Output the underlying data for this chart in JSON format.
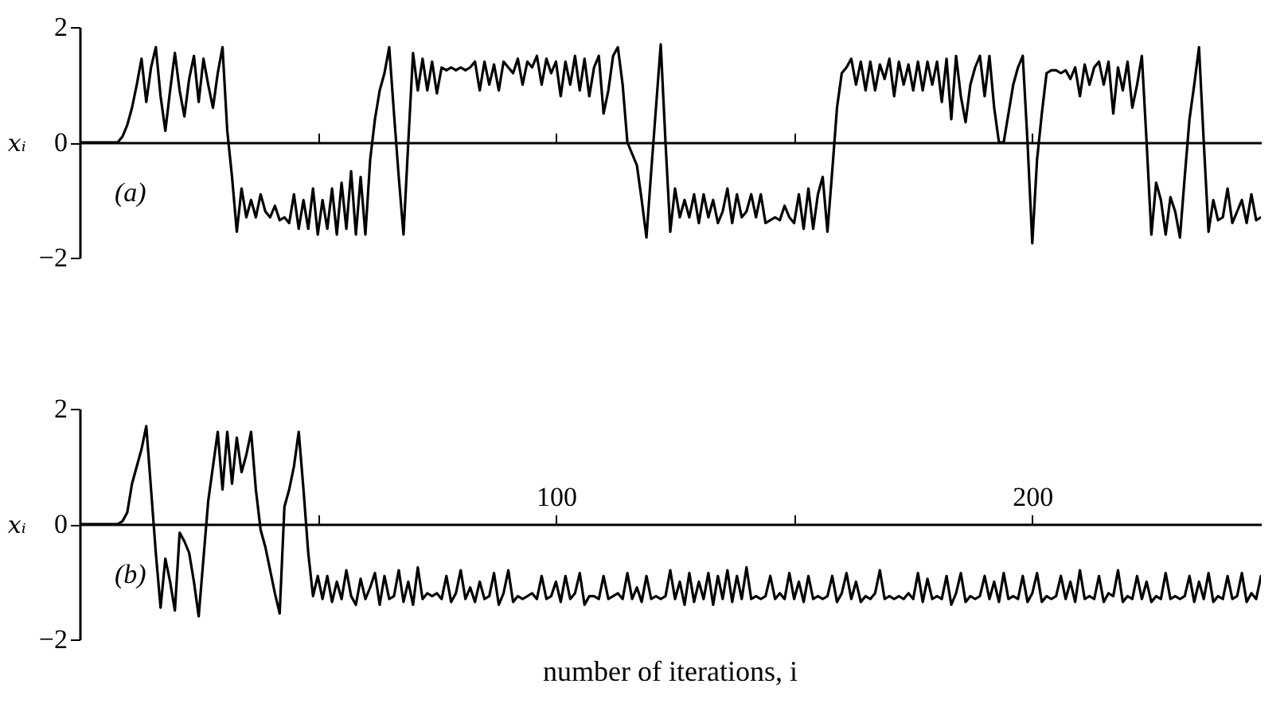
{
  "chart_data": [
    {
      "type": "line",
      "ylabel": "xᵢ",
      "annotations": [
        "(a)"
      ],
      "xlim": [
        0,
        248
      ],
      "ylim": [
        -2,
        2
      ],
      "yticks": [
        -2,
        0,
        2
      ],
      "xticks": [
        {
          "value": 50,
          "label": null
        },
        {
          "value": 100,
          "label": null
        },
        {
          "value": 150,
          "label": null
        },
        {
          "value": 200,
          "label": null
        }
      ],
      "tick_labels": "y",
      "line_style": "solid",
      "x": [
        0,
        1,
        2,
        3,
        4,
        5,
        6,
        7,
        8,
        9,
        10,
        11,
        12,
        13,
        14,
        15,
        16,
        17,
        18,
        19,
        20,
        21,
        22,
        23,
        24,
        25,
        26,
        27,
        28,
        29,
        30,
        31,
        32,
        33,
        34,
        35,
        36,
        37,
        38,
        39,
        40,
        41,
        42,
        43,
        44,
        45,
        46,
        47,
        48,
        49,
        50,
        51,
        52,
        53,
        54,
        55,
        56,
        57,
        58,
        59,
        60,
        61,
        62,
        63,
        64,
        65,
        66,
        67,
        68,
        69,
        70,
        71,
        72,
        73,
        74,
        75,
        76,
        77,
        78,
        79,
        80,
        81,
        82,
        83,
        84,
        85,
        86,
        87,
        88,
        89,
        90,
        91,
        92,
        93,
        94,
        95,
        96,
        97,
        98,
        99,
        100,
        101,
        102,
        103,
        104,
        105,
        106,
        107,
        108,
        109,
        110,
        111,
        112,
        113,
        114,
        115,
        116,
        117,
        118,
        119,
        120,
        121,
        122,
        123,
        124,
        125,
        126,
        127,
        128,
        129,
        130,
        131,
        132,
        133,
        134,
        135,
        136,
        137,
        138,
        139,
        140,
        141,
        142,
        143,
        144,
        145,
        146,
        147,
        148,
        149,
        150,
        151,
        152,
        153,
        154,
        155,
        156,
        157,
        158,
        159,
        160,
        161,
        162,
        163,
        164,
        165,
        166,
        167,
        168,
        169,
        170,
        171,
        172,
        173,
        174,
        175,
        176,
        177,
        178,
        179,
        180,
        181,
        182,
        183,
        184,
        185,
        186,
        187,
        188,
        189,
        190,
        191,
        192,
        193,
        194,
        195,
        196,
        197,
        198,
        199,
        200,
        201,
        202,
        203,
        204,
        205,
        206,
        207,
        208,
        209,
        210,
        211,
        212,
        213,
        214,
        215,
        216,
        217,
        218,
        219,
        220,
        221,
        222,
        223,
        224,
        225,
        226,
        227,
        228,
        229,
        230,
        231,
        232,
        233,
        234,
        235,
        236,
        237,
        238,
        239,
        240,
        241,
        242,
        243,
        244,
        245,
        246,
        247,
        248
      ],
      "series": [
        {
          "color": "#000000",
          "values": [
            0,
            0,
            0,
            0,
            0,
            0,
            0,
            0,
            0,
            0.1,
            0.3,
            0.6,
            1.0,
            1.45,
            0.7,
            1.3,
            1.65,
            0.8,
            0.2,
            0.9,
            1.55,
            0.9,
            0.45,
            1.1,
            1.5,
            0.7,
            1.45,
            1.0,
            0.6,
            1.2,
            1.65,
            0.2,
            -0.6,
            -1.55,
            -0.8,
            -1.3,
            -1.0,
            -1.3,
            -0.9,
            -1.2,
            -1.3,
            -1.1,
            -1.35,
            -1.3,
            -1.4,
            -0.9,
            -1.5,
            -1.0,
            -1.5,
            -0.8,
            -1.6,
            -1.0,
            -1.5,
            -0.8,
            -1.6,
            -0.7,
            -1.5,
            -0.5,
            -1.6,
            -0.6,
            -1.6,
            -0.3,
            0.4,
            0.9,
            1.2,
            1.65,
            0.5,
            -0.6,
            -1.6,
            0.0,
            1.55,
            0.9,
            1.45,
            0.9,
            1.4,
            0.85,
            1.3,
            1.25,
            1.3,
            1.25,
            1.3,
            1.25,
            1.3,
            1.4,
            0.9,
            1.4,
            1.0,
            1.35,
            0.9,
            1.4,
            1.3,
            1.2,
            1.45,
            1.0,
            1.4,
            1.3,
            1.5,
            1.0,
            1.45,
            1.2,
            1.4,
            0.8,
            1.4,
            1.0,
            1.5,
            0.9,
            1.45,
            0.8,
            1.3,
            1.5,
            0.5,
            0.9,
            1.5,
            1.65,
            1.0,
            0.0,
            -0.2,
            -0.4,
            -1.0,
            -1.65,
            -0.5,
            0.6,
            1.7,
            0.0,
            -1.55,
            -0.8,
            -1.3,
            -1.0,
            -1.3,
            -0.9,
            -1.4,
            -0.9,
            -1.3,
            -1.0,
            -1.4,
            -1.2,
            -0.8,
            -1.4,
            -0.9,
            -1.3,
            -1.2,
            -0.9,
            -1.3,
            -0.9,
            -1.4,
            -1.35,
            -1.3,
            -1.35,
            -1.1,
            -1.3,
            -1.4,
            -0.9,
            -1.5,
            -0.8,
            -1.5,
            -0.9,
            -0.6,
            -1.55,
            -0.5,
            0.6,
            1.2,
            1.3,
            1.45,
            1.0,
            1.4,
            0.9,
            1.4,
            0.9,
            1.35,
            1.1,
            1.45,
            0.8,
            1.4,
            1.0,
            1.35,
            0.9,
            1.4,
            0.9,
            1.4,
            1.0,
            1.4,
            0.7,
            1.45,
            0.4,
            1.5,
            0.8,
            0.35,
            1.0,
            1.3,
            1.5,
            0.8,
            1.5,
            0.6,
            0.0,
            0.0,
            0.5,
            1.0,
            1.3,
            1.5,
            0.0,
            -1.75,
            -0.3,
            0.5,
            1.2,
            1.25,
            1.25,
            1.2,
            1.25,
            1.1,
            1.3,
            0.8,
            1.35,
            1.0,
            1.3,
            1.4,
            1.0,
            1.4,
            0.5,
            1.3,
            0.9,
            1.4,
            0.6,
            1.0,
            1.5,
            0.0,
            -1.6,
            -0.7,
            -1.0,
            -1.6,
            -0.95,
            -1.2,
            -1.65,
            -0.6,
            0.4,
            1.0,
            1.65,
            0.0,
            -1.55,
            -1.0,
            -1.35,
            -1.3,
            -0.8,
            -1.4,
            -1.2,
            -1.0,
            -1.4,
            -0.9,
            -1.35,
            -1.3
          ]
        }
      ]
    },
    {
      "type": "line",
      "ylabel": "xᵢ",
      "xlabel": "number of iterations, i",
      "annotations": [
        "(b)"
      ],
      "xlim": [
        0,
        248
      ],
      "ylim": [
        -2,
        2
      ],
      "yticks": [
        -2,
        0,
        2
      ],
      "xticks": [
        {
          "value": 50,
          "label": null
        },
        100,
        {
          "value": 150,
          "label": null
        },
        200
      ],
      "line_style": "solid",
      "x": [
        0,
        1,
        2,
        3,
        4,
        5,
        6,
        7,
        8,
        9,
        10,
        11,
        12,
        13,
        14,
        15,
        16,
        17,
        18,
        19,
        20,
        21,
        22,
        23,
        24,
        25,
        26,
        27,
        28,
        29,
        30,
        31,
        32,
        33,
        34,
        35,
        36,
        37,
        38,
        39,
        40,
        41,
        42,
        43,
        44,
        45,
        46,
        47,
        48,
        49,
        50,
        51,
        52,
        53,
        54,
        55,
        56,
        57,
        58,
        59,
        60,
        61,
        62,
        63,
        64,
        65,
        66,
        67,
        68,
        69,
        70,
        71,
        72,
        73,
        74,
        75,
        76,
        77,
        78,
        79,
        80,
        81,
        82,
        83,
        84,
        85,
        86,
        87,
        88,
        89,
        90,
        91,
        92,
        93,
        94,
        95,
        96,
        97,
        98,
        99,
        100,
        101,
        102,
        103,
        104,
        105,
        106,
        107,
        108,
        109,
        110,
        111,
        112,
        113,
        114,
        115,
        116,
        117,
        118,
        119,
        120,
        121,
        122,
        123,
        124,
        125,
        126,
        127,
        128,
        129,
        130,
        131,
        132,
        133,
        134,
        135,
        136,
        137,
        138,
        139,
        140,
        141,
        142,
        143,
        144,
        145,
        146,
        147,
        148,
        149,
        150,
        151,
        152,
        153,
        154,
        155,
        156,
        157,
        158,
        159,
        160,
        161,
        162,
        163,
        164,
        165,
        166,
        167,
        168,
        169,
        170,
        171,
        172,
        173,
        174,
        175,
        176,
        177,
        178,
        179,
        180,
        181,
        182,
        183,
        184,
        185,
        186,
        187,
        188,
        189,
        190,
        191,
        192,
        193,
        194,
        195,
        196,
        197,
        198,
        199,
        200,
        201,
        202,
        203,
        204,
        205,
        206,
        207,
        208,
        209,
        210,
        211,
        212,
        213,
        214,
        215,
        216,
        217,
        218,
        219,
        220,
        221,
        222,
        223,
        224,
        225,
        226,
        227,
        228,
        229,
        230,
        231,
        232,
        233,
        234,
        235,
        236,
        237,
        238,
        239,
        240,
        241,
        242,
        243,
        244,
        245,
        246,
        247,
        248
      ],
      "series": [
        {
          "color": "#000000",
          "values": [
            0,
            0,
            0,
            0,
            0,
            0,
            0,
            0,
            0,
            0.05,
            0.2,
            0.7,
            1.0,
            1.3,
            1.7,
            0.6,
            -0.5,
            -1.45,
            -0.6,
            -1.0,
            -1.5,
            -0.15,
            -0.3,
            -0.5,
            -1.0,
            -1.6,
            -0.6,
            0.4,
            1.0,
            1.6,
            0.6,
            1.6,
            0.7,
            1.5,
            0.9,
            1.2,
            1.6,
            0.6,
            -0.1,
            -0.4,
            -0.8,
            -1.2,
            -1.55,
            0.3,
            0.6,
            1.0,
            1.6,
            0.6,
            -0.5,
            -1.25,
            -0.9,
            -1.3,
            -0.9,
            -1.35,
            -1.0,
            -1.3,
            -0.8,
            -1.25,
            -1.4,
            -0.95,
            -1.3,
            -1.1,
            -0.85,
            -1.4,
            -0.9,
            -1.3,
            -1.25,
            -0.8,
            -1.35,
            -1.0,
            -1.4,
            -0.75,
            -1.3,
            -1.2,
            -1.25,
            -1.2,
            -1.3,
            -0.9,
            -1.35,
            -1.2,
            -0.8,
            -1.3,
            -1.1,
            -1.35,
            -1.0,
            -1.3,
            -1.25,
            -0.85,
            -1.4,
            -1.2,
            -0.8,
            -1.35,
            -1.25,
            -1.3,
            -1.25,
            -1.2,
            -1.3,
            -0.9,
            -1.3,
            -1.25,
            -1.0,
            -1.35,
            -0.9,
            -1.3,
            -1.2,
            -0.85,
            -1.4,
            -1.25,
            -1.25,
            -1.3,
            -0.9,
            -1.3,
            -1.25,
            -1.2,
            -1.3,
            -0.85,
            -1.3,
            -1.1,
            -1.35,
            -0.9,
            -1.3,
            -1.25,
            -1.3,
            -1.25,
            -0.8,
            -1.3,
            -1.0,
            -1.4,
            -0.85,
            -1.35,
            -1.0,
            -1.3,
            -0.85,
            -1.4,
            -0.9,
            -1.3,
            -0.8,
            -1.35,
            -0.9,
            -1.3,
            -0.75,
            -1.3,
            -1.25,
            -1.3,
            -1.25,
            -0.9,
            -1.3,
            -1.2,
            -1.3,
            -0.85,
            -1.3,
            -1.0,
            -1.35,
            -0.9,
            -1.3,
            -1.25,
            -1.3,
            -1.25,
            -0.9,
            -1.35,
            -1.2,
            -0.85,
            -1.3,
            -1.0,
            -1.35,
            -1.25,
            -1.3,
            -1.2,
            -0.8,
            -1.3,
            -1.25,
            -1.3,
            -1.25,
            -1.3,
            -1.2,
            -1.3,
            -0.85,
            -1.35,
            -0.95,
            -1.3,
            -1.25,
            -1.3,
            -0.9,
            -1.4,
            -1.2,
            -0.85,
            -1.35,
            -1.25,
            -1.3,
            -1.25,
            -0.9,
            -1.3,
            -1.0,
            -1.35,
            -0.85,
            -1.3,
            -1.25,
            -1.3,
            -0.9,
            -1.35,
            -1.2,
            -0.85,
            -1.35,
            -1.25,
            -1.3,
            -1.25,
            -0.9,
            -1.3,
            -1.0,
            -1.35,
            -0.8,
            -1.3,
            -1.25,
            -1.3,
            -0.9,
            -1.35,
            -1.2,
            -1.25,
            -0.8,
            -1.35,
            -1.25,
            -1.3,
            -0.9,
            -1.3,
            -1.0,
            -1.35,
            -1.25,
            -1.3,
            -0.85,
            -1.3,
            -1.25,
            -1.3,
            -1.25,
            -0.9,
            -1.35,
            -1.0,
            -1.3,
            -0.85,
            -1.35,
            -1.25,
            -1.3,
            -0.9,
            -1.3,
            -1.25,
            -0.85,
            -1.35,
            -1.2,
            -1.3,
            -0.9
          ]
        }
      ]
    }
  ]
}
